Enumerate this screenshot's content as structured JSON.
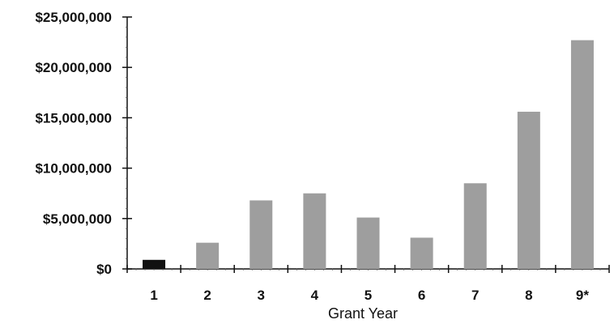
{
  "chart_data": {
    "type": "bar",
    "title": "",
    "xlabel": "Grant Year",
    "ylabel": "",
    "categories": [
      "1",
      "2",
      "3",
      "4",
      "5",
      "6",
      "7",
      "8",
      "9*"
    ],
    "values": [
      900000,
      2600000,
      6800000,
      7500000,
      5100000,
      3100000,
      8500000,
      15600000,
      22700000
    ],
    "bar_colors": [
      "#111111",
      "#9e9e9e",
      "#9e9e9e",
      "#9e9e9e",
      "#9e9e9e",
      "#9e9e9e",
      "#9e9e9e",
      "#9e9e9e",
      "#9e9e9e"
    ],
    "ylim": [
      0,
      25000000
    ],
    "y_ticks": [
      0,
      5000000,
      10000000,
      15000000,
      20000000,
      25000000
    ],
    "y_tick_labels": [
      "$0",
      "$5,000,000",
      "$10,000,000",
      "$15,000,000",
      "$20,000,000",
      "$25,000,000"
    ],
    "grid": false,
    "legend": "none"
  }
}
